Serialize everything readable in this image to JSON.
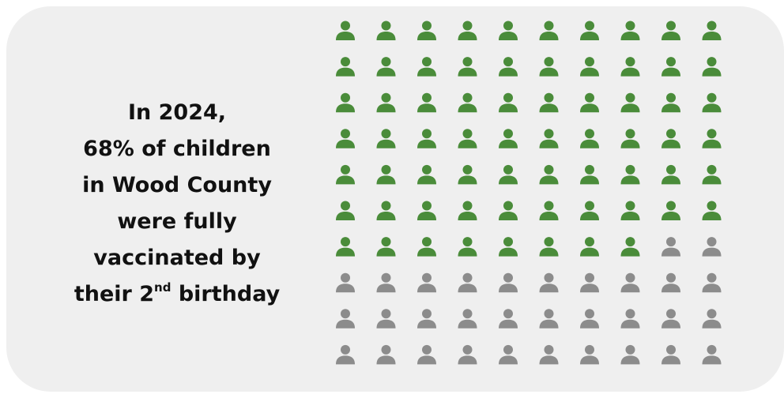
{
  "headline": {
    "line1": "In 2024,",
    "line2": "68% of children",
    "line3": "in Wood County",
    "line4": "were fully",
    "line5": "vaccinated by",
    "line6_before": "their 2",
    "line6_sup": "nd",
    "line6_after": " birthday"
  },
  "chart_data": {
    "type": "pictogram",
    "icon": "person-icon",
    "rows": 10,
    "columns": 10,
    "total": 100,
    "filled": 68,
    "colors": {
      "filled": "#4a8c3a",
      "unfilled": "#8c8c8c",
      "background": "#efefef"
    }
  }
}
